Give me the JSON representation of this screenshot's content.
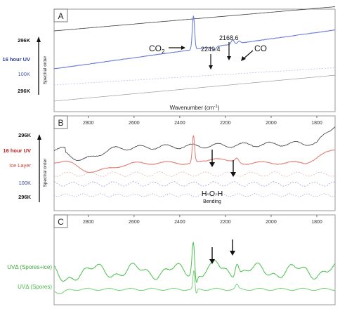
{
  "chart_data": [
    {
      "panel": "A",
      "type": "line",
      "xlabel": "Wavenumber (cm",
      "xlabel_unit_sup": "-1",
      "xlabel_close": ")",
      "ylabel": "Spectral order",
      "x_range": [
        2950,
        1720
      ],
      "x_reversed": true,
      "series": [
        {
          "name": "296K",
          "label_color": "#1a1a1a"
        },
        {
          "name": "16 hour UV",
          "label_color": "#2e3f9e"
        },
        {
          "name": "100K",
          "label_color": "#5060b0"
        },
        {
          "name": "296K",
          "label_color": "#1a1a1a"
        }
      ],
      "annotations": [
        {
          "text": "CO",
          "sub": "2",
          "x": 2340
        },
        {
          "text": "2249.4",
          "x": 2249.4
        },
        {
          "text": "2168.6",
          "x": 2168.6
        },
        {
          "text": "CO",
          "x": 2140
        }
      ]
    },
    {
      "panel": "B",
      "type": "line",
      "ylabel": "Spectral order",
      "x_range": [
        2950,
        1720
      ],
      "x_reversed": true,
      "xticks": [
        2800,
        2600,
        2400,
        2200,
        2000,
        1800
      ],
      "series": [
        {
          "name": "296K",
          "label_color": "#1a1a1a"
        },
        {
          "name": "16 hour UV",
          "label_color": "#c0201c"
        },
        {
          "name": "Ice Layer",
          "label_color": "#d04030"
        },
        {
          "name": "100K",
          "label_color": "#3a4aa6"
        },
        {
          "name": "296K",
          "label_color": "#1a1a1a"
        }
      ],
      "annotations": [
        {
          "text": "H-O-H",
          "x": 2240
        },
        {
          "text": "Bending",
          "x": 2240
        }
      ]
    },
    {
      "panel": "C",
      "type": "line",
      "x_range": [
        2950,
        1720
      ],
      "x_reversed": true,
      "xticks": [
        2800,
        2600,
        2400,
        2200,
        2000,
        1800
      ],
      "series": [
        {
          "name": "UVΔ (Spores+ice)",
          "label_color": "#39a73a"
        },
        {
          "name": "UVΔ (Spores)",
          "label_color": "#4cb84a"
        }
      ]
    }
  ],
  "colors": {
    "black_trace": "#3a3a3a",
    "blue_trace": "#6f7fd6",
    "red_trace": "#e07a70",
    "green_trace": "#4cc04c",
    "frame": "#9a9a9a"
  }
}
